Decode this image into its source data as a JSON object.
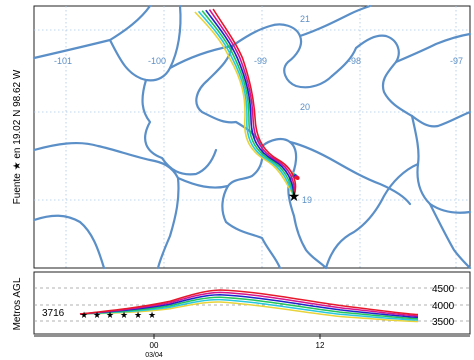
{
  "source": {
    "label": "Fuente",
    "symbol": "★",
    "location": "en  19.02 N   98.62 W"
  },
  "map": {
    "longitude_labels": [
      "-101",
      "-100",
      "-99",
      "-98",
      "-97"
    ],
    "latitude_labels": [
      "21",
      "20",
      "19"
    ],
    "grid_color": "#6a9fd8",
    "border_color": "#5b8fc7",
    "trajectory_colors": [
      "#e8d33a",
      "#27c7e0",
      "#23c45a",
      "#1b25c9",
      "#d4148f",
      "#e6192b"
    ]
  },
  "height_panel": {
    "ylabel": "Metros AGL",
    "start_value": "3716",
    "y_ticks": [
      "4500",
      "4000",
      "3500"
    ],
    "x_ticks": [
      "00",
      "12"
    ],
    "date_label": "03/04"
  }
}
